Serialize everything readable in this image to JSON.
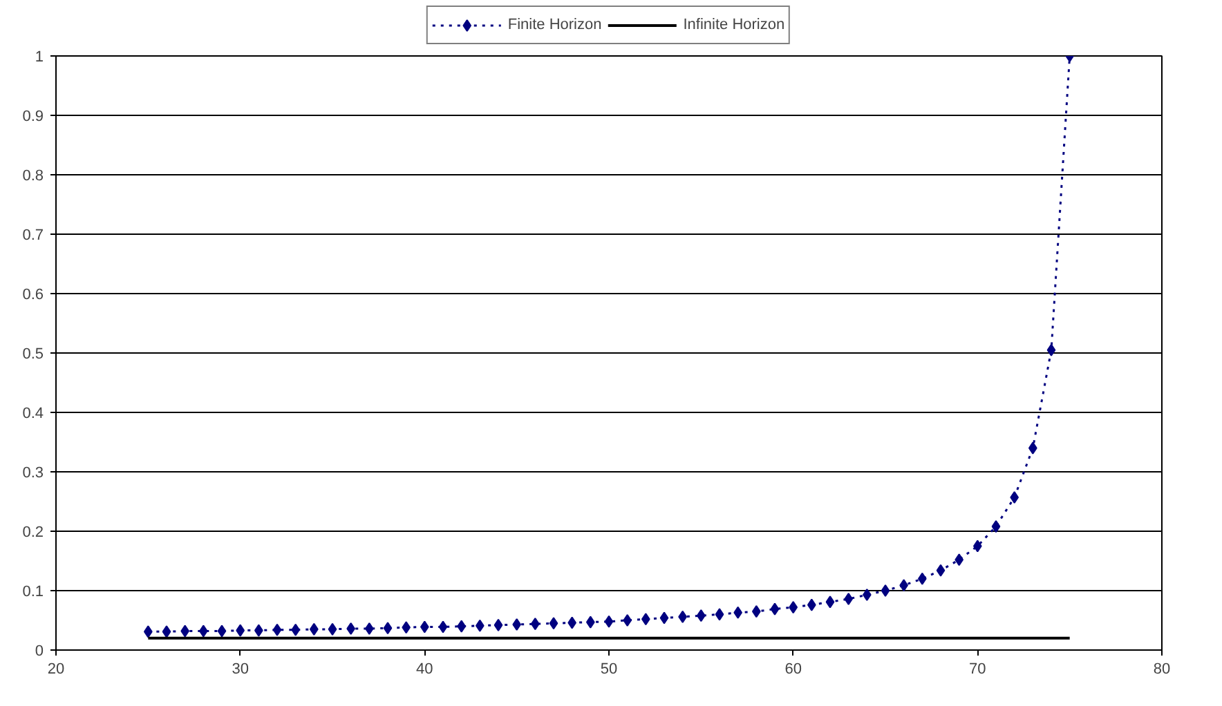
{
  "chart_data": {
    "type": "line",
    "xlim": [
      20,
      80
    ],
    "xticks": [
      20,
      30,
      40,
      50,
      60,
      70,
      80
    ],
    "ylim": [
      0,
      1
    ],
    "yticks": [
      0,
      0.1,
      0.2,
      0.3,
      0.4,
      0.5,
      0.6,
      0.7,
      0.8,
      0.9,
      1
    ],
    "grid": "y",
    "legend": "top",
    "series": [
      {
        "name": "Finite Horizon",
        "color": "#000080",
        "marker": "diamond",
        "line_style": "dotted",
        "x": [
          25,
          26,
          27,
          28,
          29,
          30,
          31,
          32,
          33,
          34,
          35,
          36,
          37,
          38,
          39,
          40,
          41,
          42,
          43,
          44,
          45,
          46,
          47,
          48,
          49,
          50,
          51,
          52,
          53,
          54,
          55,
          56,
          57,
          58,
          59,
          60,
          61,
          62,
          63,
          64,
          65,
          66,
          67,
          68,
          69,
          70,
          71,
          72,
          73,
          74,
          75
        ],
        "values": [
          0.031,
          0.031,
          0.032,
          0.032,
          0.032,
          0.033,
          0.033,
          0.034,
          0.034,
          0.035,
          0.035,
          0.036,
          0.036,
          0.037,
          0.038,
          0.039,
          0.039,
          0.04,
          0.041,
          0.042,
          0.043,
          0.044,
          0.045,
          0.046,
          0.047,
          0.048,
          0.05,
          0.052,
          0.054,
          0.056,
          0.058,
          0.06,
          0.063,
          0.065,
          0.069,
          0.072,
          0.076,
          0.081,
          0.086,
          0.093,
          0.1,
          0.109,
          0.12,
          0.134,
          0.152,
          0.175,
          0.208,
          0.257,
          0.34,
          0.505,
          1.0
        ]
      },
      {
        "name": "Infinite Horizon",
        "color": "#000000",
        "marker": "none",
        "line_style": "solid",
        "x": [
          25,
          75
        ],
        "values": [
          0.02,
          0.02
        ]
      }
    ]
  }
}
